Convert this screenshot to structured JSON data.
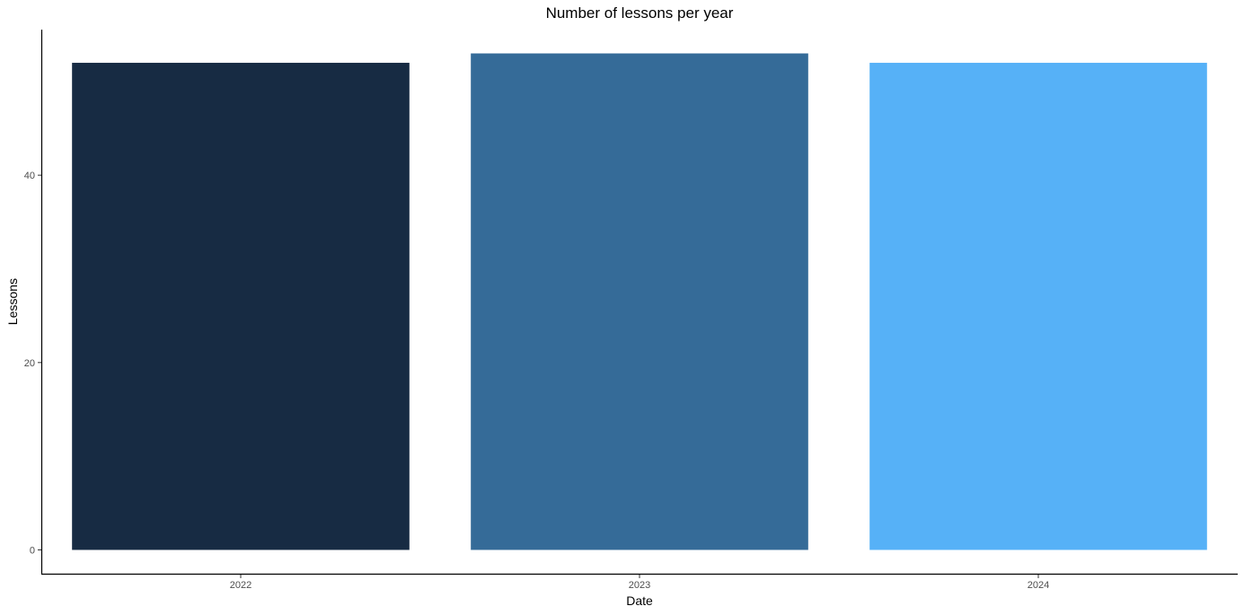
{
  "chart_data": {
    "type": "bar",
    "title": "Number of lessons per year",
    "xlabel": "Date",
    "ylabel": "Lessons",
    "categories": [
      "2022",
      "2023",
      "2024"
    ],
    "values": [
      52,
      53,
      52
    ],
    "colors": [
      "#172b43",
      "#356b98",
      "#56b1f7"
    ],
    "ylim": [
      0,
      53
    ],
    "yticks": [
      0,
      20,
      40
    ],
    "grid": false,
    "legend": "none"
  }
}
